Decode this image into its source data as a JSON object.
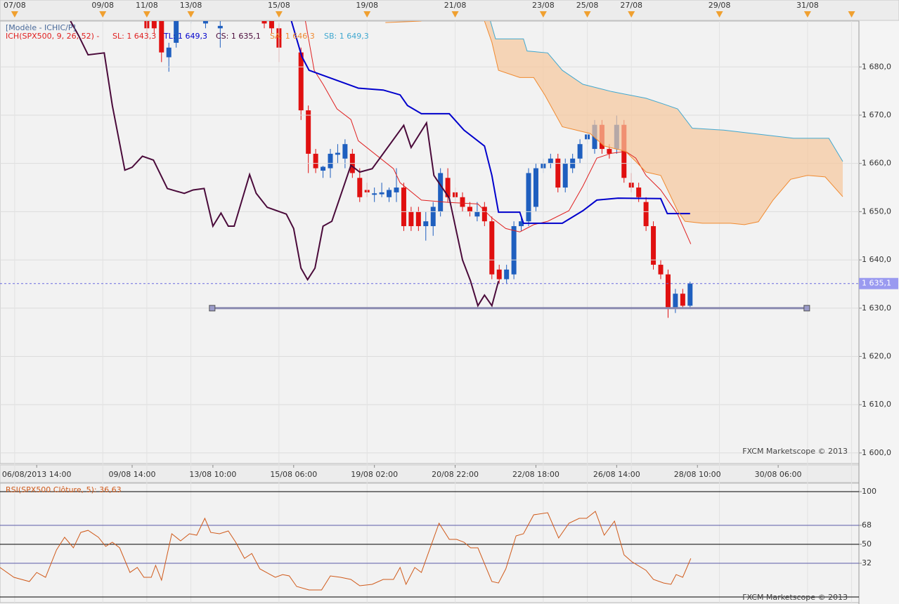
{
  "chart_data": [
    {
      "type": "candlestick",
      "title": "[Modèle - ICHIC/P]",
      "subtitle": "ICH(SPX500, 9, 26, 52) -",
      "watermark": "FXCM Marketscope © 2013",
      "xlim": [
        0,
        117
      ],
      "ylim": [
        1597.8,
        1689.5
      ],
      "grid": true,
      "yticks": [
        {
          "value": 1600,
          "label": "1 600,0"
        },
        {
          "value": 1610,
          "label": "1 610,0"
        },
        {
          "value": 1620,
          "label": "1 620,0"
        },
        {
          "value": 1630,
          "label": "1 630,0"
        },
        {
          "value": 1640,
          "label": "1 640,0"
        },
        {
          "value": 1650,
          "label": "1 650,0"
        },
        {
          "value": 1660,
          "label": "1 660,0"
        },
        {
          "value": 1670,
          "label": "1 670,0"
        },
        {
          "value": 1680,
          "label": "1 680,0"
        }
      ],
      "x2ticks": [
        {
          "value": 2,
          "label": "07/08"
        },
        {
          "value": 14,
          "label": "09/08"
        },
        {
          "value": 20,
          "label": "11/08"
        },
        {
          "value": 26,
          "label": "13/08"
        },
        {
          "value": 38,
          "label": "15/08"
        },
        {
          "value": 50,
          "label": "19/08"
        },
        {
          "value": 62,
          "label": "21/08"
        },
        {
          "value": 74,
          "label": "23/08"
        },
        {
          "value": 80,
          "label": "25/08"
        },
        {
          "value": 86,
          "label": "27/08"
        },
        {
          "value": 98,
          "label": "29/08"
        },
        {
          "value": 110,
          "label": "31/08"
        },
        {
          "value": 116,
          "label": ""
        }
      ],
      "xticks": [
        {
          "value": 5,
          "label": "06/08/2013 14:00"
        },
        {
          "value": 18,
          "label": "09/08 14:00"
        },
        {
          "value": 29,
          "label": "13/08 10:00"
        },
        {
          "value": 40,
          "label": "15/08 06:00"
        },
        {
          "value": 51,
          "label": "19/08 02:00"
        },
        {
          "value": 62,
          "label": "20/08 22:00"
        },
        {
          "value": 73,
          "label": "22/08 18:00"
        },
        {
          "value": 84,
          "label": "26/08 14:00"
        },
        {
          "value": 95,
          "label": "28/08 10:00"
        },
        {
          "value": 106,
          "label": "30/08 06:00"
        }
      ],
      "candles": {
        "up_color": "#1f5fbf",
        "down_color": "#e01010",
        "x": [
          20,
          21,
          22,
          23,
          24,
          26,
          28,
          30,
          36,
          37,
          38,
          41,
          42,
          43,
          44,
          45,
          46,
          47,
          48,
          49,
          50,
          51,
          52,
          53,
          54,
          55,
          56,
          57,
          58,
          59,
          60,
          61,
          62,
          63,
          64,
          65,
          66,
          67,
          68,
          69,
          70,
          71,
          72,
          73,
          74,
          75,
          76,
          77,
          78,
          79,
          80,
          81,
          82,
          83,
          84,
          85,
          86,
          87,
          88,
          89,
          90,
          91,
          92,
          93,
          94
        ],
        "open": [
          1691,
          1690,
          1690,
          1682,
          1685,
          1690,
          1689,
          1688,
          1691,
          1690,
          1688,
          1683,
          1671,
          1662,
          1658.5,
          1659,
          1661.8,
          1661,
          1662,
          1657,
          1654.5,
          1653.5,
          1653.6,
          1653,
          1654,
          1655,
          1650,
          1650,
          1647,
          1647,
          1650,
          1657,
          1654,
          1653,
          1651,
          1649,
          1651,
          1648,
          1638,
          1636,
          1637,
          1647,
          1648,
          1651,
          1659,
          1660,
          1661,
          1655,
          1659,
          1661,
          1665,
          1663,
          1668,
          1663,
          1663,
          1668,
          1656,
          1655,
          1652,
          1647,
          1639,
          1637,
          1630,
          1633,
          1630.5
        ],
        "high": [
          1692,
          1691,
          1691,
          1685,
          1693,
          1691,
          1692,
          1690,
          1692,
          1691,
          1689,
          1684,
          1672,
          1663,
          1659.5,
          1663,
          1664,
          1665,
          1663,
          1659,
          1656,
          1655,
          1656,
          1655,
          1659,
          1656,
          1651,
          1651,
          1650,
          1652,
          1659,
          1659,
          1655,
          1654,
          1652,
          1652,
          1652,
          1649,
          1639,
          1639,
          1648,
          1649,
          1659,
          1660,
          1661,
          1662,
          1662,
          1661,
          1662,
          1665,
          1667,
          1669,
          1669,
          1664,
          1670,
          1669,
          1658,
          1656,
          1653,
          1648,
          1640,
          1638,
          1634,
          1634,
          1635.5
        ],
        "low": [
          1687,
          1687,
          1681,
          1679,
          1684,
          1689,
          1688,
          1684,
          1688,
          1687,
          1681,
          1669,
          1658,
          1658,
          1657,
          1657,
          1660,
          1659,
          1657,
          1652,
          1653,
          1652,
          1653,
          1652,
          1652,
          1646,
          1646,
          1646,
          1644,
          1645,
          1649,
          1652,
          1652,
          1650,
          1649,
          1648,
          1647,
          1636,
          1635,
          1635,
          1636,
          1646,
          1647,
          1650,
          1658,
          1659,
          1654,
          1654,
          1658,
          1660,
          1664,
          1662,
          1662,
          1661,
          1662,
          1656,
          1654,
          1652,
          1646,
          1638,
          1636,
          1628,
          1629,
          1630,
          1630
        ],
        "close": [
          1688,
          1688,
          1683,
          1684,
          1692,
          1690.5,
          1691,
          1688.5,
          1689,
          1688,
          1684,
          1671,
          1662,
          1659,
          1659.3,
          1662,
          1662.2,
          1664,
          1658,
          1653,
          1654,
          1653.8,
          1654,
          1654.5,
          1655,
          1647,
          1647,
          1647,
          1648,
          1651,
          1658,
          1653,
          1653,
          1651,
          1650,
          1650,
          1648,
          1637,
          1636,
          1638,
          1647,
          1648,
          1658,
          1659,
          1660,
          1661,
          1655,
          1660,
          1661,
          1664,
          1666,
          1668,
          1663,
          1662,
          1668,
          1657,
          1655,
          1653,
          1647,
          1639,
          1637,
          1630,
          1633,
          1630.5,
          1635.1
        ]
      },
      "series": [
        {
          "name": "SL: 1 643,3",
          "color": "#e02020",
          "width": 1,
          "x": [
            41.6,
            42.8,
            44,
            45.9,
            47.8,
            48.8,
            53.6,
            54.5,
            57.4,
            61.2,
            65.1,
            67,
            68.9,
            70.8,
            72.7,
            74.6,
            77.5,
            79.4,
            81.3,
            83.3,
            85.2,
            86.6,
            88,
            90,
            92.3,
            94.1
          ],
          "values": [
            1689.5,
            1679.3,
            1676.4,
            1671.3,
            1669.1,
            1664.7,
            1658.9,
            1656,
            1652.4,
            1651.9,
            1651.6,
            1648.7,
            1646.5,
            1645.8,
            1647.3,
            1648,
            1650.2,
            1655.3,
            1661.1,
            1662.1,
            1662.5,
            1661.1,
            1657.5,
            1654.5,
            1649.5,
            1643.3
          ]
        },
        {
          "name": "TL: 1 649,3",
          "color": "#0000cc",
          "width": 2,
          "x": [
            39.7,
            41.1,
            42.1,
            48.8,
            52.2,
            54.5,
            55.5,
            57.4,
            61.2,
            63.2,
            66,
            67,
            67.9,
            70.8,
            71.3,
            76.6,
            79.4,
            81.3,
            84.2,
            90,
            90.9,
            94
          ],
          "values": [
            1689.5,
            1682.2,
            1679.3,
            1675.6,
            1675.2,
            1674.2,
            1672,
            1670.3,
            1670.3,
            1666.9,
            1663.6,
            1657.5,
            1649.9,
            1649.9,
            1647.6,
            1647.6,
            1650.2,
            1652.4,
            1652.8,
            1652.7,
            1649.6,
            1649.6
          ]
        },
        {
          "name": "CS: 1 635,1",
          "color": "#4a0a3a",
          "width": 2,
          "x": [
            9.6,
            10.7,
            12,
            14.2,
            15.3,
            17,
            18,
            19.4,
            20.9,
            22.8,
            23.9,
            25.1,
            26.3,
            27.8,
            29,
            30.1,
            31.1,
            31.9,
            34,
            34.9,
            36.4,
            39,
            40,
            41,
            41.9,
            42.9,
            44,
            45.2,
            47.8,
            49,
            50.7,
            55,
            56,
            58.1,
            59.1,
            61.2,
            63,
            64.1,
            65.1,
            66,
            67,
            67.9
          ],
          "values": [
            1689.5,
            1686.5,
            1682.5,
            1682.9,
            1672,
            1658.6,
            1659.2,
            1661.5,
            1660.7,
            1654.8,
            1654.3,
            1653.8,
            1654.5,
            1654.8,
            1647,
            1649.7,
            1647,
            1647,
            1657.7,
            1653.8,
            1650.9,
            1649.5,
            1646.5,
            1638.3,
            1635.9,
            1638.3,
            1647,
            1648,
            1659.6,
            1658.2,
            1658.9,
            1667.9,
            1663.3,
            1668.4,
            1657.5,
            1652.8,
            1640,
            1635.6,
            1630.5,
            1632.7,
            1630.5,
            1635.6
          ]
        },
        {
          "name": "SA: 1 646,3",
          "color": "#f08a30",
          "width": 1,
          "x": [
            52.5,
            57.4,
            60,
            66,
            67,
            67.9,
            70.8,
            72.7,
            74.2,
            76.6,
            80.4,
            82.3,
            85.2,
            86.6,
            88,
            90,
            92.3,
            93.3,
            95.7,
            99.5,
            101.4,
            103.3,
            105.3,
            107.7,
            110,
            112.4,
            114.8
          ],
          "values": [
            1689.2,
            1689.5,
            null,
            1689.5,
            1685.1,
            1679.3,
            1677.8,
            1677.8,
            1674.2,
            1667.6,
            1666.2,
            1663.6,
            1662.5,
            1660.4,
            1658.2,
            1657.5,
            1650.2,
            1648,
            1647.6,
            1647.6,
            1647.3,
            1647.9,
            1652.4,
            1656.7,
            1657.5,
            1657.2,
            1653.1
          ]
        },
        {
          "name": "SB: 1 649,3",
          "color": "#40a8d0",
          "width": 1,
          "x": [
            66.8,
            67.5,
            71.3,
            71.8,
            74.6,
            76.6,
            79.4,
            83.3,
            88,
            90.4,
            92.3,
            94.3,
            98.6,
            108.1,
            112.9,
            114.8
          ],
          "values": [
            1689.5,
            1685.8,
            1685.8,
            1683.3,
            1682.9,
            1679.3,
            1676.4,
            1674.9,
            1673.5,
            1672.3,
            1671.3,
            1667.3,
            1666.9,
            1665.2,
            1665.2,
            1660.4
          ]
        }
      ],
      "cloud_color": "#f7c89c",
      "support": {
        "x": [
          28.9,
          109.9
        ],
        "value": 1630,
        "color": "#8a8ab0"
      },
      "last_price": {
        "value": 1635.1,
        "label": "1 635,1",
        "color": "#9a9af0"
      }
    },
    {
      "type": "line",
      "title": "RSI(SPX500.Clôture, 5): 36,63",
      "watermark": "FXCM Marketscope © 2013",
      "xlim": [
        0,
        117
      ],
      "ylim": [
        -5.3,
        108
      ],
      "yticks": [
        100,
        68,
        50,
        32
      ],
      "reference_lines": [
        {
          "value": 100,
          "color": "#000000"
        },
        {
          "value": 68,
          "color": "#5a5aa8"
        },
        {
          "value": 50,
          "color": "#000000"
        },
        {
          "value": 32,
          "color": "#5a5aa8"
        },
        {
          "value": 0,
          "color": "#000000"
        }
      ],
      "series": [
        {
          "color": "#d05a1a",
          "x": [
            0,
            1.9,
            4,
            5,
            6.2,
            7.7,
            8.8,
            10,
            11,
            12,
            13.4,
            14.4,
            15.3,
            16.3,
            17.7,
            18.7,
            19.6,
            20.6,
            21.2,
            22,
            23.4,
            24.6,
            25.8,
            26.8,
            27.9,
            28.7,
            29.9,
            31.1,
            32.1,
            33.3,
            34.3,
            35.4,
            37.5,
            38.5,
            39.4,
            40.4,
            42.1,
            43.8,
            45,
            46.4,
            47.8,
            49,
            50.7,
            52.2,
            53.6,
            54.5,
            55.3,
            56.5,
            57.4,
            59.8,
            61.2,
            62.2,
            63.2,
            64.1,
            65.1,
            67,
            67.9,
            68.9,
            70.3,
            71.3,
            72.7,
            74.6,
            76.1,
            77.5,
            78.9,
            79.9,
            81.1,
            82.3,
            83.7,
            85,
            86.1,
            88,
            89,
            90.4,
            91.4,
            92.1,
            93,
            94.1
          ],
          "values": [
            28,
            18.7,
            14.7,
            23.3,
            18.7,
            44.7,
            56.7,
            46.7,
            61.3,
            63.3,
            56.7,
            48,
            52,
            46.7,
            23.3,
            28,
            18.7,
            18.7,
            30,
            16,
            60,
            53.3,
            60,
            58.7,
            74.7,
            61.3,
            60,
            62.7,
            52,
            36.7,
            41.3,
            26.7,
            18.7,
            21.3,
            20,
            10,
            6.7,
            6.7,
            20,
            18.7,
            16.7,
            10.7,
            12,
            16.7,
            16.7,
            28,
            12,
            28,
            23.3,
            70,
            54.7,
            54.7,
            52,
            46.7,
            46.7,
            14.7,
            13.3,
            26.7,
            58,
            60,
            78,
            80,
            56,
            70,
            74.7,
            74.7,
            81.3,
            58.7,
            72,
            40,
            33.3,
            25.3,
            16.7,
            13.3,
            12,
            21.3,
            18.7,
            36.63
          ]
        }
      ]
    }
  ]
}
